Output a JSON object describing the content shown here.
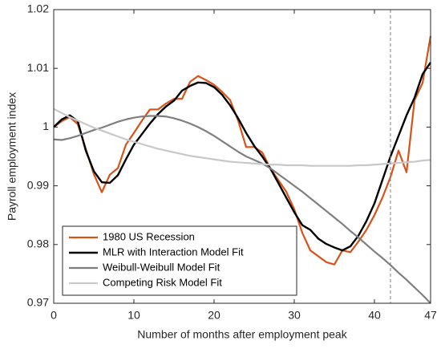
{
  "chart_data": {
    "type": "line",
    "xlabel": "Number of months after employment peak",
    "ylabel": "Payroll employment index",
    "x": [
      0,
      1,
      2,
      3,
      4,
      5,
      6,
      7,
      8,
      9,
      10,
      11,
      12,
      13,
      14,
      15,
      16,
      17,
      18,
      19,
      20,
      21,
      22,
      23,
      24,
      25,
      26,
      27,
      28,
      29,
      30,
      31,
      32,
      33,
      34,
      35,
      36,
      37,
      38,
      39,
      40,
      41,
      42,
      43,
      44,
      45,
      46,
      47
    ],
    "series": [
      {
        "name": "1980 US Recession",
        "color": "#d95319",
        "width": 2.2,
        "values": [
          1.0,
          1.001,
          1.0017,
          1.0005,
          0.9963,
          0.992,
          0.9889,
          0.9919,
          0.993,
          0.997,
          0.999,
          1.0011,
          1.003,
          1.003,
          1.004,
          1.0048,
          1.0048,
          1.0077,
          1.0087,
          1.008,
          1.0072,
          1.006,
          1.0046,
          1.0011,
          0.9966,
          0.9966,
          0.9957,
          0.993,
          0.991,
          0.989,
          0.986,
          0.982,
          0.979,
          0.978,
          0.977,
          0.9766,
          0.979,
          0.9787,
          0.9805,
          0.9825,
          0.985,
          0.988,
          0.9915,
          0.996,
          0.9923,
          1.0046,
          1.0075,
          1.0155
        ]
      },
      {
        "name": "MLR with Interaction Model Fit",
        "color": "#000000",
        "width": 2.4,
        "values": [
          1.0,
          1.0013,
          1.002,
          1.001,
          0.996,
          0.9925,
          0.9906,
          0.9905,
          0.9918,
          0.9945,
          0.997,
          0.9988,
          1.0006,
          1.0022,
          1.0035,
          1.0045,
          1.0062,
          1.007,
          1.0076,
          1.0075,
          1.0068,
          1.0055,
          1.0037,
          1.0015,
          0.999,
          0.9968,
          0.995,
          0.993,
          0.9905,
          0.988,
          0.9855,
          0.9833,
          0.9825,
          0.981,
          0.9801,
          0.9795,
          0.979,
          0.9797,
          0.9815,
          0.984,
          0.987,
          0.991,
          0.995,
          0.9985,
          1.002,
          1.005,
          1.009,
          1.011
        ]
      },
      {
        "name": "Weibull-Weibull Model Fit",
        "color": "#7f7f7f",
        "width": 2.2,
        "values": [
          0.9979,
          0.9978,
          0.9981,
          0.9985,
          0.999,
          0.9995,
          0.9999,
          1.0004,
          1.0009,
          1.0013,
          1.0016,
          1.0018,
          1.0019,
          1.0019,
          1.0018,
          1.0015,
          1.0011,
          1.0006,
          1.0,
          0.9993,
          0.9985,
          0.9976,
          0.9967,
          0.9958,
          0.995,
          0.9944,
          0.9938,
          0.993,
          0.992,
          0.991,
          0.99,
          0.989,
          0.9879,
          0.9868,
          0.9857,
          0.9846,
          0.9835,
          0.9823,
          0.9812,
          0.98,
          0.9788,
          0.9777,
          0.9765,
          0.9752,
          0.974,
          0.9727,
          0.9714,
          0.97
        ]
      },
      {
        "name": "Competing Risk Model Fit",
        "color": "#c8c8c8",
        "width": 2.2,
        "values": [
          1.0031,
          1.0024,
          1.0017,
          1.0011,
          1.0005,
          0.9999,
          0.9994,
          0.9989,
          0.9984,
          0.9979,
          0.9975,
          0.9971,
          0.9967,
          0.9963,
          0.996,
          0.9957,
          0.9954,
          0.9951,
          0.9949,
          0.9947,
          0.9945,
          0.9943,
          0.9941,
          0.994,
          0.9939,
          0.9938,
          0.9937,
          0.9936,
          0.9936,
          0.9935,
          0.9935,
          0.9935,
          0.9934,
          0.9934,
          0.9934,
          0.9934,
          0.9934,
          0.9934,
          0.9935,
          0.9935,
          0.9936,
          0.9937,
          0.9938,
          0.9939,
          0.994,
          0.9941,
          0.9943,
          0.9944
        ]
      }
    ],
    "vline": 42,
    "xlim": [
      0,
      47
    ],
    "xticks": [
      0,
      10,
      20,
      30,
      40,
      47
    ],
    "ylim": [
      0.97,
      1.02
    ],
    "yticks": [
      0.97,
      0.98,
      0.99,
      1,
      1.01,
      1.02
    ],
    "legend": "lower left",
    "grid": false
  }
}
